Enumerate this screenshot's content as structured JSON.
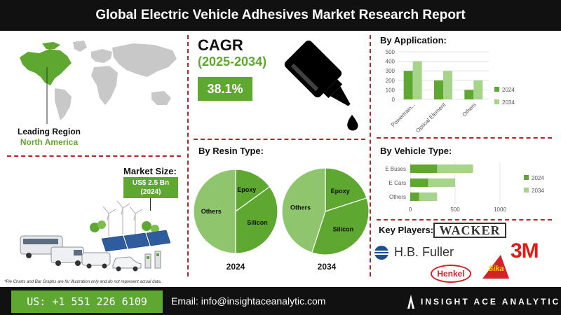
{
  "header": {
    "title": "Global Electric Vehicle Adhesives Market Research Report"
  },
  "cagr": {
    "title": "CAGR",
    "years": "(2025-2034)",
    "value": "38.1%"
  },
  "region": {
    "label": "Leading Region",
    "value": "North America"
  },
  "market_size": {
    "label": "Market Size:",
    "value_line1": "US$ 2.5 Bn",
    "value_line2": "(2024)"
  },
  "sections": {
    "application": "By Application:",
    "resin": "By Resin Type:",
    "vehicle": "By Vehicle Type:",
    "key_players": "Key Players:"
  },
  "key_players": [
    "WACKER",
    "H.B. Fuller",
    "3M",
    "Henkel",
    "Sika"
  ],
  "disclaimer": "*Pie Charts and Bar Graphs are for illustration only and do not represent actual data.",
  "footer": {
    "phone": "US: +1 551 226 6109",
    "email": "Email: info@insightaceanalytic.com",
    "brand": "INSIGHT ACE ANALYTIC"
  },
  "colors": {
    "dark_green": "#5ea831",
    "light_green": "#a6d58a",
    "pie_light": "#8fc56c",
    "accent_red": "#b3262b"
  },
  "chart_data": [
    {
      "type": "bar",
      "id": "application",
      "categories": [
        "Powertrain...",
        "Optical Element",
        "Others"
      ],
      "series": [
        {
          "name": "2024",
          "values": [
            300,
            200,
            100
          ]
        },
        {
          "name": "2034",
          "values": [
            400,
            300,
            200
          ]
        }
      ],
      "ylim": [
        0,
        500
      ],
      "yticks": [
        0,
        100,
        200,
        300,
        400,
        500
      ],
      "legend_position": "right"
    },
    {
      "type": "bar",
      "id": "vehicle",
      "orientation": "horizontal",
      "categories": [
        "E Buses",
        "E Cars",
        "Others"
      ],
      "series": [
        {
          "name": "2024",
          "values": [
            300,
            200,
            100
          ]
        },
        {
          "name": "2034",
          "values": [
            400,
            300,
            200
          ]
        }
      ],
      "xlim": [
        0,
        1000
      ],
      "xticks": [
        0,
        500,
        1000
      ],
      "legend_position": "right"
    },
    {
      "type": "pie",
      "id": "resin-2024",
      "title": "2024",
      "labels": [
        "Epoxy",
        "Silicon",
        "Others"
      ],
      "values": [
        15,
        35,
        50
      ]
    },
    {
      "type": "pie",
      "id": "resin-2034",
      "title": "2034",
      "labels": [
        "Epoxy",
        "Silicon",
        "Others"
      ],
      "values": [
        20,
        35,
        45
      ]
    }
  ]
}
